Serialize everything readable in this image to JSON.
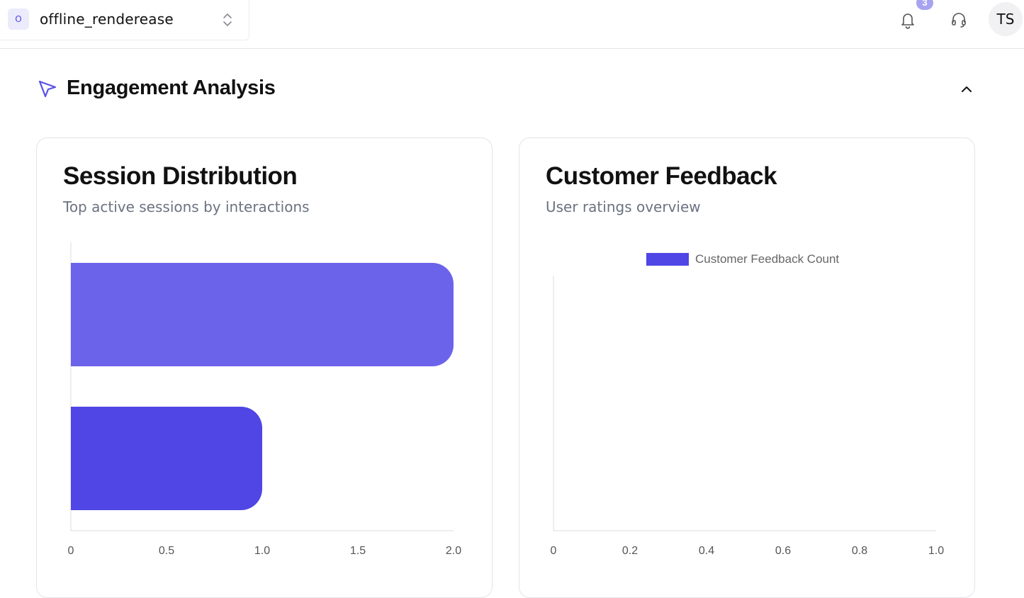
{
  "workspace": {
    "badge": "O",
    "name": "offline_renderease"
  },
  "header": {
    "notification_count": "3",
    "avatar_initials": "TS"
  },
  "section": {
    "title": "Engagement Analysis"
  },
  "cards": {
    "session": {
      "title": "Session Distribution",
      "subtitle": "Top active sessions by interactions"
    },
    "feedback": {
      "title": "Customer Feedback",
      "subtitle": "User ratings overview"
    }
  },
  "chart_data": [
    {
      "type": "bar",
      "orientation": "horizontal",
      "categories": [
        "",
        ""
      ],
      "values": [
        2,
        1
      ],
      "bar_colors": [
        "#6b63ea",
        "#4f46e5"
      ],
      "xlim": [
        0,
        2
      ],
      "xticks": [
        "0",
        "0.5",
        "1.0",
        "1.5",
        "2.0"
      ],
      "title": "",
      "xlabel": "",
      "ylabel": "",
      "grid": false,
      "legend": false
    },
    {
      "type": "bar",
      "categories": [],
      "series": [
        {
          "name": "Customer Feedback Count",
          "values": [],
          "color": "#4f46e5"
        }
      ],
      "xlim": [
        0,
        1
      ],
      "xticks": [
        "0",
        "0.2",
        "0.4",
        "0.6",
        "0.8",
        "1.0"
      ],
      "title": "",
      "xlabel": "",
      "ylabel": "",
      "grid": false,
      "legend": "top"
    }
  ]
}
